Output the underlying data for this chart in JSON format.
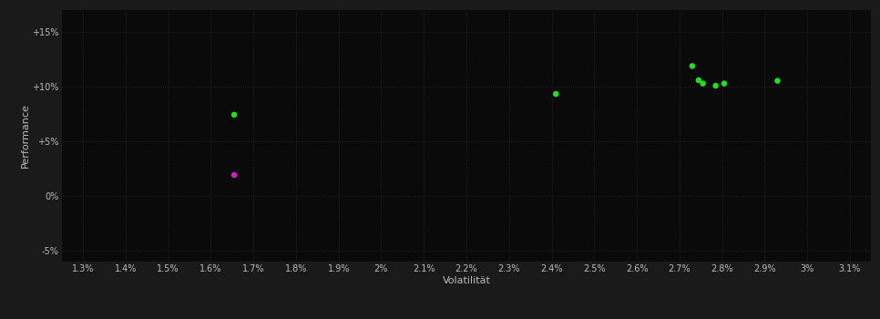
{
  "background_color": "#1a1a1a",
  "plot_bg_color": "#0a0a0a",
  "grid_color": "#2a2a2a",
  "text_color": "#bbbbbb",
  "xlabel": "Volatilität",
  "ylabel": "Performance",
  "xlim": [
    1.25,
    3.15
  ],
  "ylim": [
    -6.0,
    17.0
  ],
  "xticks": [
    1.3,
    1.4,
    1.5,
    1.6,
    1.7,
    1.8,
    1.9,
    2.0,
    2.1,
    2.2,
    2.3,
    2.4,
    2.5,
    2.6,
    2.7,
    2.8,
    2.9,
    3.0,
    3.1
  ],
  "yticks": [
    -5,
    0,
    5,
    10,
    15
  ],
  "ytick_labels": [
    "-5%",
    "0%",
    "+5%",
    "+10%",
    "+15%"
  ],
  "xtick_labels": [
    "1.3%",
    "1.4%",
    "1.5%",
    "1.6%",
    "1.7%",
    "1.8%",
    "1.9%",
    "2%",
    "2.1%",
    "2.2%",
    "2.3%",
    "2.4%",
    "2.5%",
    "2.6%",
    "2.7%",
    "2.8%",
    "2.9%",
    "3%",
    "3.1%"
  ],
  "green_points": [
    [
      1.655,
      7.4
    ],
    [
      2.41,
      9.3
    ],
    [
      2.73,
      11.85
    ],
    [
      2.745,
      10.55
    ],
    [
      2.755,
      10.25
    ],
    [
      2.785,
      10.05
    ],
    [
      2.805,
      10.25
    ],
    [
      2.93,
      10.5
    ]
  ],
  "magenta_points": [
    [
      1.655,
      1.9
    ]
  ],
  "point_size": 22,
  "font_size_ticks": 7,
  "font_size_labels": 8
}
